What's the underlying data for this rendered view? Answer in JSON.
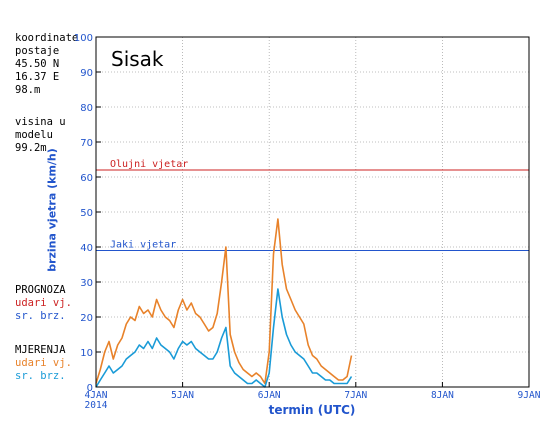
{
  "sidebar": {
    "coord_lines": [
      "koordinate",
      "postaje",
      "45.50 N",
      "16.37 E",
      "98.m"
    ],
    "model_lines": [
      "visina u",
      "modelu",
      "99.2m"
    ],
    "prognoza": {
      "title": "PROGNOZA",
      "gust": "udari vj.",
      "mean": "sr. brz."
    },
    "mjerenja": {
      "title": "MJERENJA",
      "gust": "udari vj.",
      "mean": "sr. brz."
    }
  },
  "colors": {
    "gust_measured": "#e8822a",
    "mean_measured": "#1a9bd7",
    "forecast_label": "#2255cc",
    "storm_line": "#cc2222",
    "strong_line": "#2255cc",
    "frame": "#000000"
  },
  "chart_data": {
    "type": "line",
    "title": "Sisak",
    "xlabel": "termin (UTC)",
    "ylabel": "brzina vjetra (km/h)",
    "ylim": [
      0,
      100
    ],
    "yticks": [
      0,
      10,
      20,
      30,
      40,
      50,
      60,
      70,
      80,
      90,
      100
    ],
    "xlim": [
      0,
      5
    ],
    "xticks": [
      {
        "x": 0,
        "label": "4JAN",
        "sublabel": "2014"
      },
      {
        "x": 1,
        "label": "5JAN"
      },
      {
        "x": 2,
        "label": "6JAN"
      },
      {
        "x": 3,
        "label": "7JAN"
      },
      {
        "x": 4,
        "label": "8JAN"
      },
      {
        "x": 5,
        "label": "9JAN"
      }
    ],
    "grid": true,
    "thresholds": [
      {
        "label": "Olujni vjetar",
        "value": 62,
        "color": "#cc2222"
      },
      {
        "label": "Jaki vjetar",
        "value": 39,
        "color": "#2255cc"
      }
    ],
    "series": [
      {
        "name": "udari vj.",
        "color": "#e8822a",
        "x": [
          0.0,
          0.05,
          0.1,
          0.15,
          0.2,
          0.25,
          0.3,
          0.35,
          0.4,
          0.45,
          0.5,
          0.55,
          0.6,
          0.65,
          0.7,
          0.75,
          0.8,
          0.85,
          0.9,
          0.95,
          1.0,
          1.05,
          1.1,
          1.15,
          1.2,
          1.25,
          1.3,
          1.35,
          1.4,
          1.45,
          1.5,
          1.55,
          1.6,
          1.65,
          1.7,
          1.75,
          1.8,
          1.85,
          1.9,
          1.95,
          2.0,
          2.05,
          2.1,
          2.15,
          2.2,
          2.25,
          2.3,
          2.35,
          2.4,
          2.45,
          2.5,
          2.55,
          2.6,
          2.65,
          2.7,
          2.75,
          2.8,
          2.85,
          2.9,
          2.95
        ],
        "values": [
          1,
          5,
          10,
          13,
          8,
          12,
          14,
          18,
          20,
          19,
          23,
          21,
          22,
          20,
          25,
          22,
          20,
          19,
          17,
          22,
          25,
          22,
          24,
          21,
          20,
          18,
          16,
          17,
          21,
          30,
          40,
          15,
          10,
          7,
          5,
          4,
          3,
          4,
          3,
          1,
          10,
          38,
          48,
          35,
          28,
          25,
          22,
          20,
          18,
          12,
          9,
          8,
          6,
          5,
          4,
          3,
          2,
          2,
          3,
          9
        ]
      },
      {
        "name": "sr. brz.",
        "color": "#1a9bd7",
        "x": [
          0.0,
          0.05,
          0.1,
          0.15,
          0.2,
          0.25,
          0.3,
          0.35,
          0.4,
          0.45,
          0.5,
          0.55,
          0.6,
          0.65,
          0.7,
          0.75,
          0.8,
          0.85,
          0.9,
          0.95,
          1.0,
          1.05,
          1.1,
          1.15,
          1.2,
          1.25,
          1.3,
          1.35,
          1.4,
          1.45,
          1.5,
          1.55,
          1.6,
          1.65,
          1.7,
          1.75,
          1.8,
          1.85,
          1.9,
          1.95,
          2.0,
          2.05,
          2.1,
          2.15,
          2.2,
          2.25,
          2.3,
          2.35,
          2.4,
          2.45,
          2.5,
          2.55,
          2.6,
          2.65,
          2.7,
          2.75,
          2.8,
          2.85,
          2.9,
          2.95
        ],
        "values": [
          0,
          2,
          4,
          6,
          4,
          5,
          6,
          8,
          9,
          10,
          12,
          11,
          13,
          11,
          14,
          12,
          11,
          10,
          8,
          11,
          13,
          12,
          13,
          11,
          10,
          9,
          8,
          8,
          10,
          14,
          17,
          6,
          4,
          3,
          2,
          1,
          1,
          2,
          1,
          0,
          4,
          17,
          28,
          20,
          15,
          12,
          10,
          9,
          8,
          6,
          4,
          4,
          3,
          2,
          2,
          1,
          1,
          1,
          1,
          3
        ]
      }
    ]
  }
}
